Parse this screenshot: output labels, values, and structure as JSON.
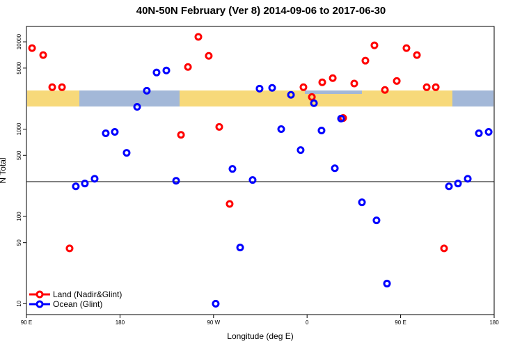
{
  "chart_data": {
    "type": "scatter",
    "title": "40N-50N February (Ver 8)   2014-09-06 to 2017-06-30",
    "xlabel": "Longitude (deg E)",
    "ylabel": "N Total",
    "log_y": true,
    "legend": "lower left",
    "xlim": [
      90,
      540
    ],
    "xticks": [
      {
        "value": 90,
        "label": "90 E"
      },
      {
        "value": 180,
        "label": "180"
      },
      {
        "value": 270,
        "label": "90 W"
      },
      {
        "value": 360,
        "label": "0"
      },
      {
        "value": 450,
        "label": "90 E"
      },
      {
        "value": 540,
        "label": "180"
      }
    ],
    "ylim": [
      7.5,
      15000
    ],
    "yticks": [
      10,
      50,
      100,
      500,
      1000,
      5000,
      10000
    ],
    "hline": 250,
    "series": [
      {
        "name": "Land (Nadir&Glint)",
        "color": "#ff0000",
        "x": [
          95.4,
          106.1,
          114.8,
          124.2,
          131.5,
          238.7,
          245.4,
          255.4,
          265.4,
          275.5,
          285.5,
          356.5,
          364.6,
          374.6,
          384.7,
          394.7,
          405.4,
          416.1,
          424.8,
          434.9,
          446.3,
          455.6,
          465.7,
          475.1,
          483.8,
          491.8
        ],
        "values": [
          8470,
          7050,
          3020,
          3020,
          43,
          860,
          5150,
          11400,
          6900,
          1060,
          139,
          3020,
          2330,
          3440,
          3840,
          1340,
          3330,
          6080,
          9120,
          2810,
          3560,
          8470,
          7050,
          3020,
          3020,
          43
        ]
      },
      {
        "name": "Ocean (Glint)",
        "color": "#0000ff",
        "x": [
          137.5,
          146.2,
          155.6,
          166.3,
          175.0,
          186.4,
          196.5,
          205.8,
          215.2,
          224.6,
          234.0,
          272.1,
          288.2,
          295.6,
          307.6,
          314.3,
          326.4,
          335.1,
          344.5,
          353.8,
          366.6,
          373.9,
          386.7,
          392.7,
          412.8,
          426.8,
          436.9,
          496.5,
          505.2,
          514.6,
          525.3,
          534.7
        ],
        "values": [
          221,
          238,
          270,
          895,
          929,
          535,
          1800,
          2750,
          4450,
          4700,
          256,
          10,
          350,
          44,
          261,
          2910,
          2970,
          1000,
          2470,
          575,
          1980,
          964,
          356,
          1320,
          145,
          90,
          17,
          221,
          238,
          270,
          895,
          929
        ]
      }
    ]
  }
}
